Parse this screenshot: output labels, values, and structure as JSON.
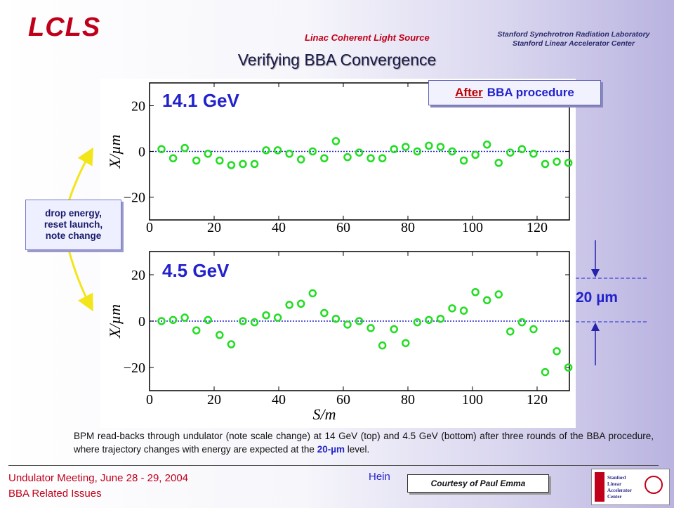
{
  "header": {
    "logo": "LCLS",
    "subtitle": "Linac Coherent Light Source",
    "org_line1": "Stanford Synchrotron Radiation Laboratory",
    "org_line2": "Stanford Linear Accelerator Center"
  },
  "title": "Verifying BBA Convergence",
  "after_box": {
    "emph": "After",
    "rest": "BBA procedure"
  },
  "note_box": {
    "line1": "drop energy,",
    "line2": "reset launch,",
    "line3": "note change"
  },
  "scale_label": "20 µm",
  "caption": {
    "part1": "BPM read-backs through undulator (note scale change) at 14 GeV (top) and 4.5 GeV (bottom) after three rounds of the BBA procedure, where trajectory changes with energy are expected at the ",
    "highlight": "20-µm",
    "part2": " level."
  },
  "footer": {
    "line1": "Undulator Meeting, June 28 - 29, 2004",
    "line2": "BBA Related Issues",
    "mid_line1": "Hein",
    "mid_line2": "",
    "courtesy": "Courtesy of Paul Emma",
    "logo_text": "Stanford Linear Accelerator Center"
  },
  "colors": {
    "marker": "#22dd22",
    "accent": "#2222cc",
    "brand": "#c0001a"
  },
  "chart_data": [
    {
      "type": "scatter",
      "label": "14.1 GeV",
      "xlabel": "",
      "ylabel": "X/µm",
      "xlim": [
        0,
        130
      ],
      "ylim": [
        -30,
        30
      ],
      "xticks": [
        0,
        20,
        40,
        60,
        80,
        100,
        120
      ],
      "yticks": [
        -20,
        0,
        20
      ],
      "reference_line": 0,
      "x": [
        3.7,
        7.3,
        10.9,
        14.5,
        18.1,
        21.7,
        25.3,
        28.9,
        32.5,
        36.1,
        39.7,
        43.3,
        46.9,
        50.5,
        54.1,
        57.7,
        61.3,
        64.9,
        68.5,
        72.1,
        75.7,
        79.3,
        82.9,
        86.5,
        90.1,
        93.7,
        97.3,
        100.9,
        104.5,
        108.1,
        111.7,
        115.3,
        118.9,
        122.5,
        126.1,
        129.7
      ],
      "y": [
        1,
        -3,
        1.5,
        -4,
        -1,
        -4,
        -6,
        -5.5,
        -5.5,
        0.5,
        0.5,
        -1,
        -3.5,
        0,
        -3,
        4.5,
        -2.5,
        -0.5,
        -3,
        -3,
        1,
        2,
        0,
        2.5,
        2,
        0,
        -4,
        -1.5,
        3,
        -5,
        -0.5,
        1,
        -1,
        -5.5,
        -4.5,
        -5
      ]
    },
    {
      "type": "scatter",
      "label": "4.5 GeV",
      "xlabel": "S/m",
      "ylabel": "X/µm",
      "xlim": [
        0,
        130
      ],
      "ylim": [
        -30,
        30
      ],
      "xticks": [
        0,
        20,
        40,
        60,
        80,
        100,
        120
      ],
      "yticks": [
        -20,
        0,
        20
      ],
      "reference_line": 0,
      "x": [
        3.7,
        7.3,
        10.9,
        14.5,
        18.1,
        21.7,
        25.3,
        28.9,
        32.5,
        36.1,
        39.7,
        43.3,
        46.9,
        50.5,
        54.1,
        57.7,
        61.3,
        64.9,
        68.5,
        72.1,
        75.7,
        79.3,
        82.9,
        86.5,
        90.1,
        93.7,
        97.3,
        100.9,
        104.5,
        108.1,
        111.7,
        115.3,
        118.9,
        122.5,
        126.1,
        129.7
      ],
      "y": [
        0,
        0.5,
        1.5,
        -4,
        0.5,
        -6,
        -10,
        0,
        -0.5,
        2.5,
        1.5,
        7,
        7.5,
        12,
        3.5,
        1,
        -1.5,
        0,
        -3,
        -10.5,
        -3.5,
        -9.5,
        -0.5,
        0.5,
        1,
        5.5,
        4.5,
        12.5,
        9,
        11.5,
        -4.5,
        -0.5,
        -3.5,
        -22,
        -13,
        -20
      ]
    }
  ]
}
